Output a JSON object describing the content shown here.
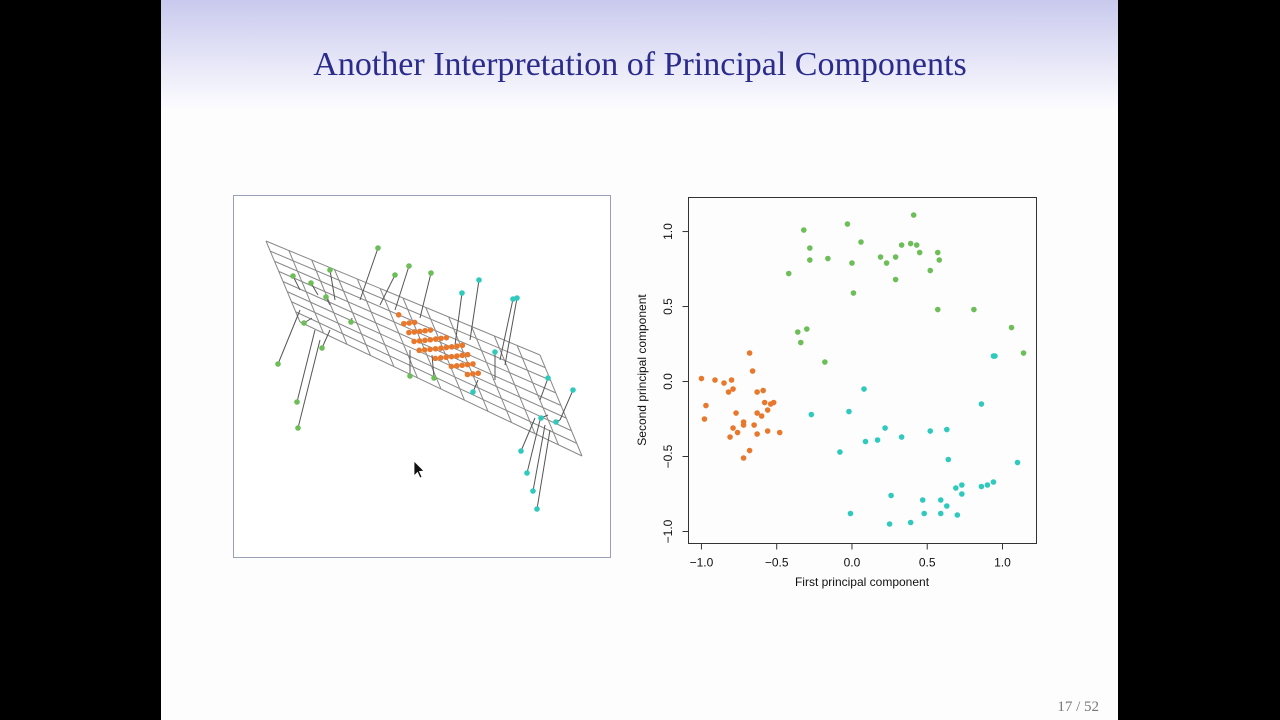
{
  "slide": {
    "title": "Another Interpretation of Principal Components",
    "page": "17 / 52"
  },
  "chart_data": {
    "type": "scatter",
    "xlabel": "First principal component",
    "ylabel": "Second principal component",
    "xlim": [
      -1.086,
      1.226
    ],
    "ylim": [
      -1.08,
      1.227
    ],
    "xticks": [
      {
        "value": -1,
        "label": "−1.0"
      },
      {
        "value": -0.5,
        "label": "−0.5"
      },
      {
        "value": 0,
        "label": "0.0"
      },
      {
        "value": 0.5,
        "label": "0.5"
      },
      {
        "value": 1,
        "label": "1.0"
      }
    ],
    "yticks": [
      {
        "value": -1,
        "label": "−1.0"
      },
      {
        "value": -0.5,
        "label": "−0.5"
      },
      {
        "value": 0,
        "label": "0.0"
      },
      {
        "value": 0.5,
        "label": "0.5"
      },
      {
        "value": 1,
        "label": "1.0"
      }
    ],
    "series": [
      {
        "color": "#e8782c",
        "x": [
          -1.0,
          -0.97,
          -0.98,
          -0.91,
          -0.85,
          -0.8,
          -0.82,
          -0.79,
          -0.77,
          -0.79,
          -0.81,
          -0.76,
          -0.72,
          -0.72,
          -0.68,
          -0.72,
          -0.68,
          -0.66,
          -0.63,
          -0.63,
          -0.65,
          -0.63,
          -0.59,
          -0.58,
          -0.56,
          -0.54,
          -0.52,
          -0.56,
          -0.48,
          -0.6
        ],
        "values": [
          0.02,
          -0.16,
          -0.25,
          0.01,
          -0.01,
          0.01,
          -0.07,
          -0.05,
          -0.21,
          -0.31,
          -0.37,
          -0.34,
          -0.29,
          -0.27,
          0.19,
          -0.51,
          -0.46,
          0.07,
          -0.07,
          -0.21,
          -0.29,
          -0.35,
          -0.06,
          -0.14,
          -0.19,
          -0.15,
          -0.14,
          -0.33,
          -0.34,
          -0.23
        ]
      },
      {
        "color": "#6dbd58",
        "x": [
          -0.32,
          -0.28,
          -0.28,
          -0.42,
          -0.16,
          -0.03,
          0.0,
          0.06,
          0.01,
          0.19,
          0.23,
          0.29,
          0.33,
          0.29,
          0.41,
          0.39,
          0.43,
          0.45,
          0.52,
          0.57,
          0.58,
          0.57,
          0.81,
          1.06,
          1.14,
          -0.36,
          -0.3,
          -0.34,
          -0.18
        ],
        "values": [
          1.01,
          0.89,
          0.81,
          0.72,
          0.82,
          1.05,
          0.79,
          0.93,
          0.59,
          0.83,
          0.79,
          0.83,
          0.91,
          0.68,
          1.11,
          0.92,
          0.91,
          0.86,
          0.74,
          0.86,
          0.81,
          0.48,
          0.48,
          0.36,
          0.19,
          0.33,
          0.35,
          0.26,
          0.13
        ]
      },
      {
        "color": "#2fc9be",
        "x": [
          -0.27,
          -0.02,
          0.08,
          -0.08,
          0.09,
          0.17,
          0.22,
          0.33,
          0.52,
          0.63,
          0.64,
          -0.01,
          0.26,
          0.25,
          0.39,
          0.47,
          0.48,
          0.59,
          0.59,
          0.63,
          0.69,
          0.73,
          0.73,
          0.7,
          0.86,
          0.9,
          0.94,
          1.1,
          0.94,
          0.95,
          0.86
        ],
        "values": [
          -0.22,
          -0.2,
          -0.05,
          -0.47,
          -0.4,
          -0.39,
          -0.31,
          -0.37,
          -0.33,
          -0.32,
          -0.52,
          -0.88,
          -0.76,
          -0.95,
          -0.94,
          -0.79,
          -0.88,
          -0.79,
          -0.88,
          -0.83,
          -0.71,
          -0.69,
          -0.75,
          -0.89,
          -0.7,
          -0.69,
          -0.67,
          -0.54,
          0.17,
          0.17,
          -0.15
        ]
      }
    ]
  }
}
